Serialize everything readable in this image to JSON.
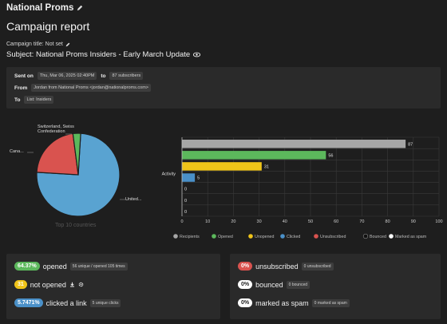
{
  "header": {
    "org_name": "National Proms",
    "page_title": "Campaign report"
  },
  "campaign": {
    "title_label": "Campaign title: Not set",
    "subject_label": "Subject: National Proms Insiders - Early March Update"
  },
  "details": {
    "sent_on_label": "Sent on",
    "sent_on_value": "Thu, Mar 06, 2025 02:40PM",
    "to_word": "to",
    "subscribers": "87 subscribers",
    "from_label": "From",
    "from_value": "Jordan from National Proms <jordan@nationalproms.com>",
    "to_label": "To",
    "to_value": "List: Insiders"
  },
  "pie": {
    "caption": "Top 10 countries",
    "labels": [
      "Switzerland, Swiss Confederation",
      "Cana...",
      "United..."
    ],
    "slices": [
      {
        "name": "United...",
        "value": 0.75,
        "color": "#59a3d1"
      },
      {
        "name": "Cana...",
        "value": 0.22,
        "color": "#d9534f"
      },
      {
        "name": "Switzerland, Swiss Confederation",
        "value": 0.03,
        "color": "#5cb85c"
      }
    ]
  },
  "chart_data": {
    "type": "bar",
    "orientation": "horizontal",
    "category": "Activity",
    "series": [
      {
        "name": "Recipients",
        "value": 87,
        "color": "#a6a6a6"
      },
      {
        "name": "Opened",
        "value": 56,
        "color": "#5cb85c"
      },
      {
        "name": "Unopened",
        "value": 31,
        "color": "#f0c419"
      },
      {
        "name": "Clicked",
        "value": 5,
        "color": "#4a90c8"
      },
      {
        "name": "Unsubscribed",
        "value": 0,
        "color": "#d9534f"
      },
      {
        "name": "Bounced",
        "value": 0,
        "color": "#1e1e1e"
      },
      {
        "name": "Marked as spam",
        "value": 0,
        "color": "#ffffff"
      }
    ],
    "xticks": [
      "0",
      "10",
      "20",
      "30",
      "40",
      "50",
      "60",
      "70",
      "80",
      "90",
      "100"
    ],
    "xlim": [
      0,
      100
    ],
    "grid": true,
    "legend": "bottom"
  },
  "stats_left": [
    {
      "pct": "64.37%",
      "label": "opened",
      "detail": "56 unique / opened 105 times",
      "color": "#5cb85c"
    },
    {
      "pct": "31",
      "label": "not opened",
      "detail": "",
      "color": "#f0c419"
    },
    {
      "pct": "5.7471%",
      "label": "clicked a link",
      "detail": "5 unique clicks",
      "color": "#4a90c8"
    }
  ],
  "stats_right": [
    {
      "pct": "0%",
      "label": "unsubscribed",
      "detail": "0 unsubscribed",
      "color": "#d9534f",
      "text": "#fff"
    },
    {
      "pct": "0%",
      "label": "bounced",
      "detail": "0 bounced",
      "color": "#ffffff",
      "text": "#222"
    },
    {
      "pct": "0%",
      "label": "marked as spam",
      "detail": "0 marked as spam",
      "color": "#ffffff",
      "text": "#222"
    }
  ]
}
